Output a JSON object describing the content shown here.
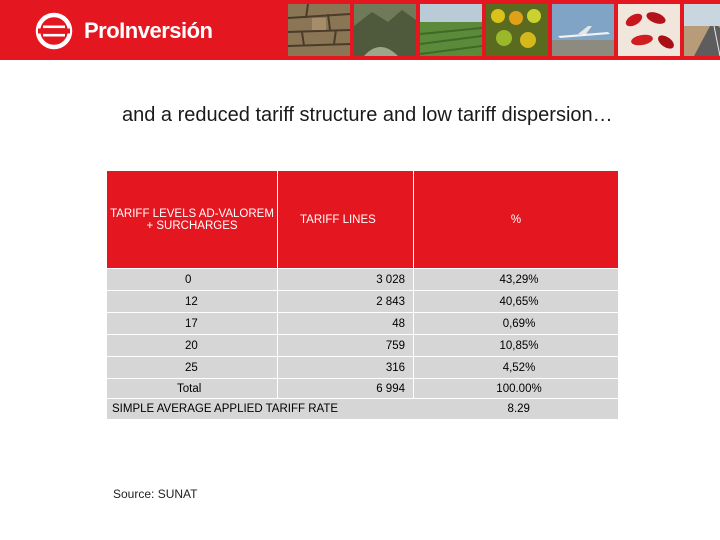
{
  "brand": {
    "name": "ProInversión",
    "color": "#e4161f"
  },
  "headline": "and a reduced tariff structure and low tariff dispersion…",
  "table": {
    "headers": [
      "TARIFF LEVELS AD-VALOREM + SURCHARGES",
      "TARIFF  LINES",
      "%"
    ],
    "rows": [
      {
        "level": "0",
        "lines": "3 028",
        "pct": "43,29%"
      },
      {
        "level": "12",
        "lines": "2 843",
        "pct": "40,65%"
      },
      {
        "level": "17",
        "lines": "48",
        "pct": "0,69%"
      },
      {
        "level": "20",
        "lines": "759",
        "pct": "10,85%"
      },
      {
        "level": "25",
        "lines": "316",
        "pct": "4,52%"
      }
    ],
    "total": {
      "label": "Total",
      "lines": "6 994",
      "pct": "100.00%"
    },
    "average": {
      "label": "SIMPLE AVERAGE APPLIED TARIFF RATE",
      "value": "8.29"
    }
  },
  "source": "Source: SUNAT",
  "photos": [
    "stone-wall",
    "mountain-river",
    "farm-field",
    "produce-boxes",
    "airplane",
    "red-peppers",
    "desert-road"
  ]
}
